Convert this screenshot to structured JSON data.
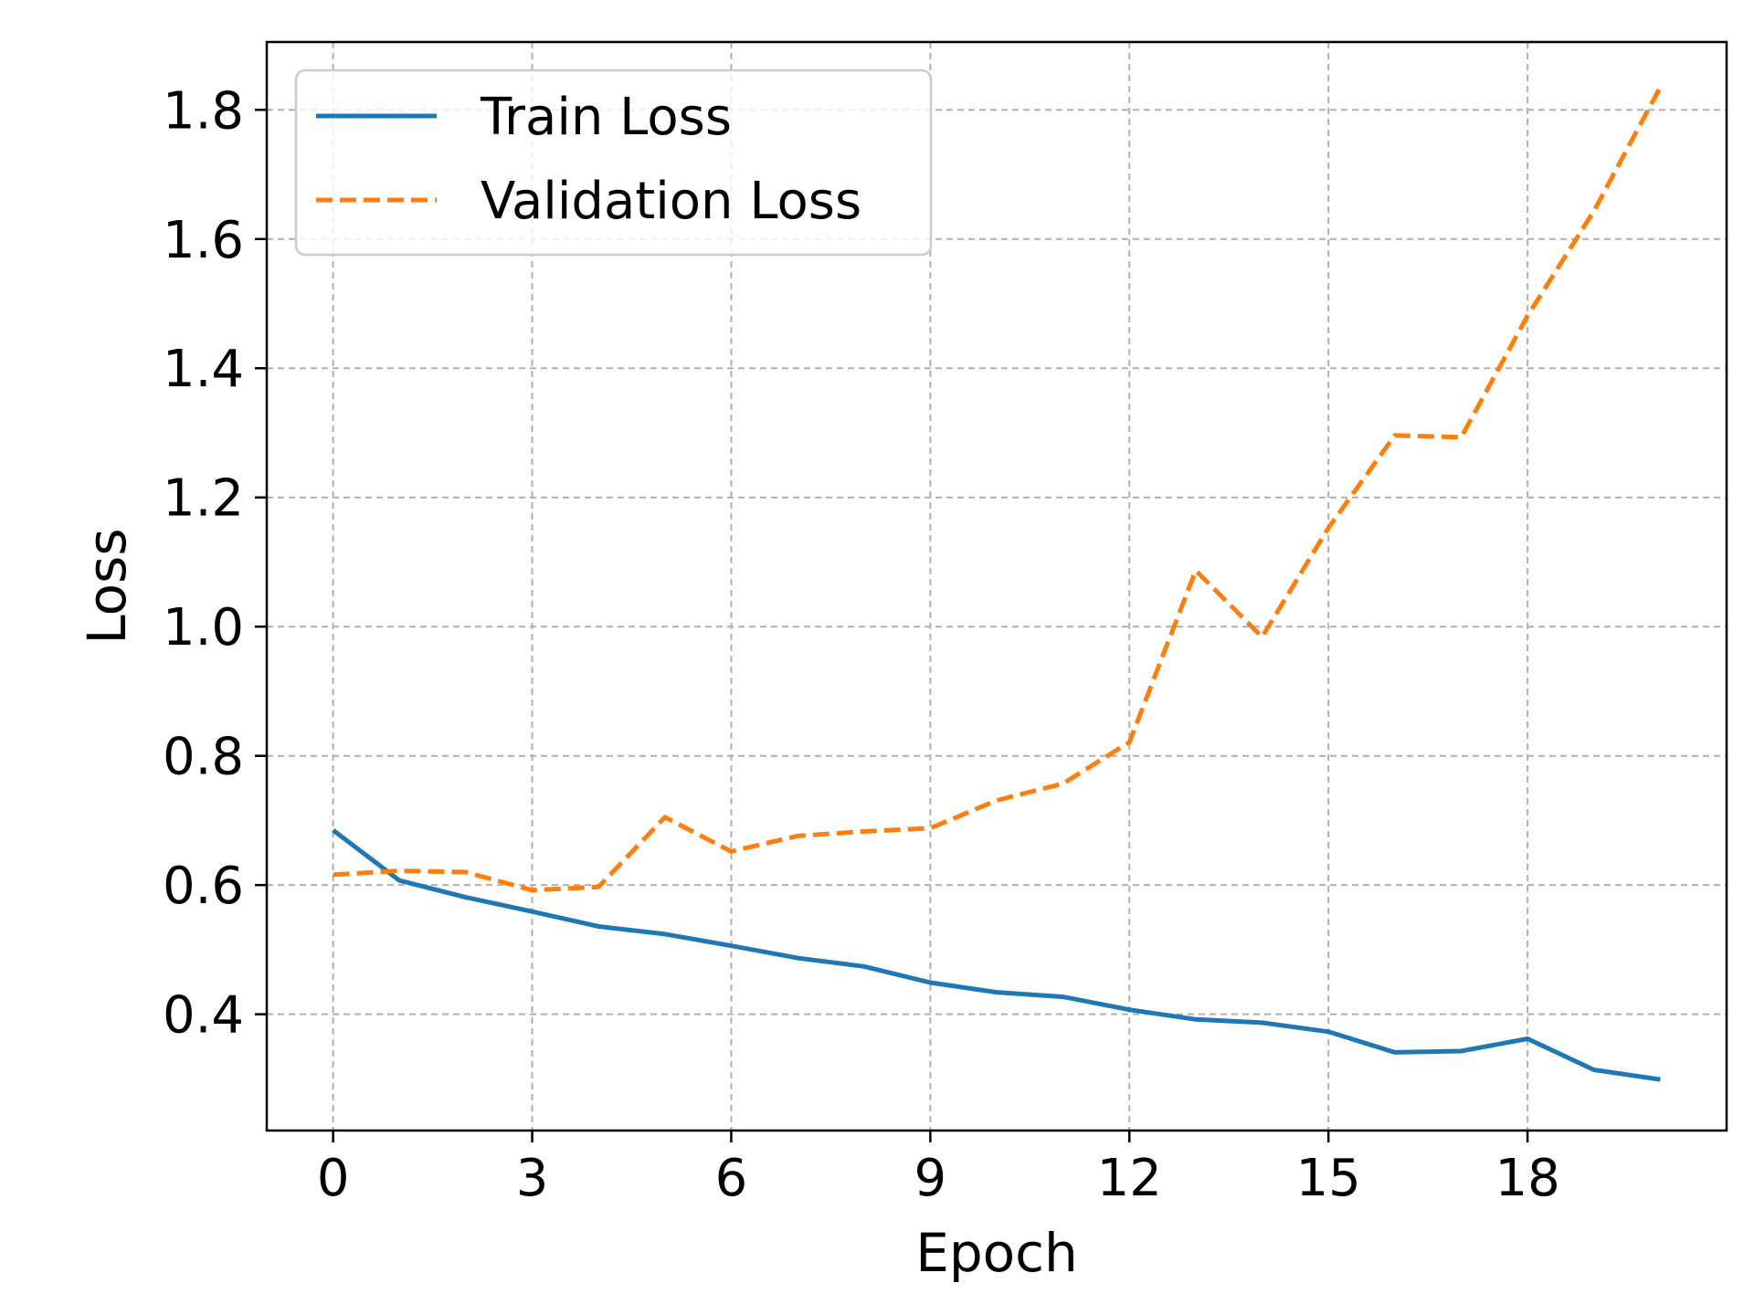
{
  "chart_data": {
    "type": "line",
    "title": "",
    "xlabel": "Epoch",
    "ylabel": "Loss",
    "xlim": [
      -1,
      21
    ],
    "ylim": [
      0.22,
      1.905
    ],
    "xticks": [
      0,
      3,
      6,
      9,
      12,
      15,
      18
    ],
    "xtick_labels": [
      "0",
      "3",
      "6",
      "9",
      "12",
      "15",
      "18"
    ],
    "yticks": [
      0.4,
      0.6,
      0.8,
      1.0,
      1.2,
      1.4,
      1.6,
      1.8
    ],
    "ytick_labels": [
      "0.4",
      "0.6",
      "0.8",
      "1.0",
      "1.2",
      "1.4",
      "1.6",
      "1.8"
    ],
    "grid": true,
    "legend_position": "top-left",
    "x": [
      0,
      1,
      2,
      3,
      4,
      5,
      6,
      7,
      8,
      9,
      10,
      11,
      12,
      13,
      14,
      15,
      16,
      17,
      18,
      19,
      20
    ],
    "series": [
      {
        "name": "Train Loss",
        "color": "#1f77b4",
        "style": "solid",
        "values": [
          0.685,
          0.607,
          0.581,
          0.559,
          0.536,
          0.524,
          0.506,
          0.487,
          0.474,
          0.449,
          0.434,
          0.427,
          0.407,
          0.392,
          0.387,
          0.373,
          0.341,
          0.343,
          0.362,
          0.314,
          0.299
        ]
      },
      {
        "name": "Validation Loss",
        "color": "#ff7f0e",
        "style": "dashed",
        "values": [
          0.616,
          0.622,
          0.62,
          0.592,
          0.597,
          0.705,
          0.652,
          0.676,
          0.683,
          0.688,
          0.731,
          0.757,
          0.821,
          1.087,
          0.984,
          1.153,
          1.296,
          1.293,
          1.481,
          1.643,
          1.835
        ]
      }
    ]
  }
}
